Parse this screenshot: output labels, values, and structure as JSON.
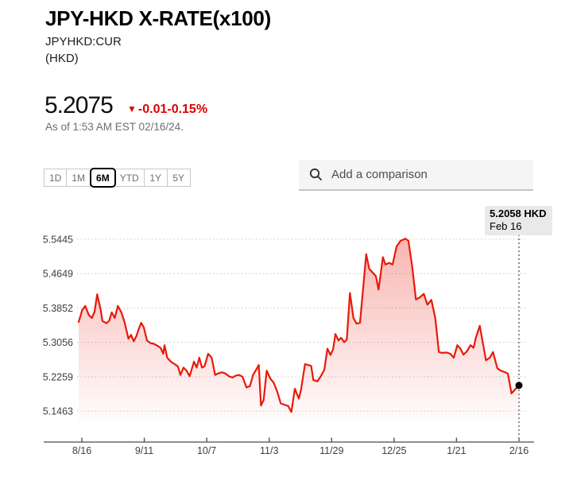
{
  "header": {
    "title": "JPY-HKD X-RATE(x100)",
    "ticker": "JPYHKD:CUR",
    "currency": "(HKD)",
    "price": "5.2075",
    "direction_icon": "▼",
    "change": "-0.01",
    "change_pct": "-0.15%",
    "as_of": "As of 1:53 AM EST 02/16/24."
  },
  "controls": {
    "ranges": [
      "1D",
      "1M",
      "6M",
      "YTD",
      "1Y",
      "5Y"
    ],
    "selected_range": "6M",
    "search_placeholder": "Add a comparison"
  },
  "colors": {
    "change_red": "#e00000",
    "line_red": "#e8190a",
    "fill_red": "#e8190a",
    "annotation_bg": "#e9e9e9"
  },
  "chart_data": {
    "type": "area",
    "title": "JPY-HKD X-RATE(x100)",
    "series_name": "JPYHKD:CUR",
    "unit": "HKD",
    "grid": "horizontal-dotted",
    "legend": "none",
    "line_color": "#e8190a",
    "y_ticks": [
      "5.5445",
      "5.4649",
      "5.3852",
      "5.3056",
      "5.2259",
      "5.1463"
    ],
    "x_ticks": [
      "8/16",
      "9/11",
      "10/7",
      "11/3",
      "11/29",
      "12/25",
      "1/21",
      "2/16"
    ],
    "ylim": [
      5.1463,
      5.5445
    ],
    "last_point": {
      "label": "5.2058 HKD",
      "date": "Feb 16",
      "value": 5.2058
    },
    "points": [
      [
        0.0,
        5.353
      ],
      [
        0.008,
        5.38
      ],
      [
        0.015,
        5.39
      ],
      [
        0.023,
        5.369
      ],
      [
        0.03,
        5.362
      ],
      [
        0.036,
        5.376
      ],
      [
        0.042,
        5.417
      ],
      [
        0.05,
        5.381
      ],
      [
        0.054,
        5.355
      ],
      [
        0.063,
        5.35
      ],
      [
        0.069,
        5.355
      ],
      [
        0.075,
        5.375
      ],
      [
        0.082,
        5.362
      ],
      [
        0.089,
        5.39
      ],
      [
        0.097,
        5.375
      ],
      [
        0.104,
        5.353
      ],
      [
        0.113,
        5.314
      ],
      [
        0.119,
        5.323
      ],
      [
        0.125,
        5.308
      ],
      [
        0.131,
        5.32
      ],
      [
        0.137,
        5.338
      ],
      [
        0.142,
        5.351
      ],
      [
        0.148,
        5.34
      ],
      [
        0.155,
        5.31
      ],
      [
        0.163,
        5.304
      ],
      [
        0.171,
        5.302
      ],
      [
        0.178,
        5.298
      ],
      [
        0.186,
        5.293
      ],
      [
        0.192,
        5.279
      ],
      [
        0.195,
        5.299
      ],
      [
        0.201,
        5.27
      ],
      [
        0.209,
        5.261
      ],
      [
        0.218,
        5.255
      ],
      [
        0.225,
        5.25
      ],
      [
        0.231,
        5.23
      ],
      [
        0.238,
        5.247
      ],
      [
        0.245,
        5.24
      ],
      [
        0.252,
        5.227
      ],
      [
        0.262,
        5.261
      ],
      [
        0.268,
        5.247
      ],
      [
        0.274,
        5.27
      ],
      [
        0.28,
        5.247
      ],
      [
        0.286,
        5.25
      ],
      [
        0.294,
        5.279
      ],
      [
        0.302,
        5.27
      ],
      [
        0.31,
        5.23
      ],
      [
        0.318,
        5.234
      ],
      [
        0.326,
        5.236
      ],
      [
        0.334,
        5.233
      ],
      [
        0.341,
        5.227
      ],
      [
        0.349,
        5.224
      ],
      [
        0.356,
        5.228
      ],
      [
        0.364,
        5.23
      ],
      [
        0.372,
        5.226
      ],
      [
        0.381,
        5.201
      ],
      [
        0.389,
        5.204
      ],
      [
        0.396,
        5.23
      ],
      [
        0.403,
        5.242
      ],
      [
        0.409,
        5.253
      ],
      [
        0.414,
        5.159
      ],
      [
        0.42,
        5.172
      ],
      [
        0.427,
        5.24
      ],
      [
        0.435,
        5.222
      ],
      [
        0.443,
        5.212
      ],
      [
        0.451,
        5.191
      ],
      [
        0.459,
        5.164
      ],
      [
        0.467,
        5.161
      ],
      [
        0.476,
        5.158
      ],
      [
        0.483,
        5.144
      ],
      [
        0.491,
        5.198
      ],
      [
        0.5,
        5.175
      ],
      [
        0.505,
        5.196
      ],
      [
        0.514,
        5.255
      ],
      [
        0.521,
        5.253
      ],
      [
        0.528,
        5.251
      ],
      [
        0.533,
        5.218
      ],
      [
        0.542,
        5.215
      ],
      [
        0.55,
        5.227
      ],
      [
        0.558,
        5.242
      ],
      [
        0.565,
        5.291
      ],
      [
        0.572,
        5.276
      ],
      [
        0.578,
        5.29
      ],
      [
        0.583,
        5.325
      ],
      [
        0.59,
        5.31
      ],
      [
        0.596,
        5.316
      ],
      [
        0.603,
        5.306
      ],
      [
        0.609,
        5.312
      ],
      [
        0.616,
        5.42
      ],
      [
        0.624,
        5.362
      ],
      [
        0.631,
        5.349
      ],
      [
        0.639,
        5.351
      ],
      [
        0.653,
        5.51
      ],
      [
        0.66,
        5.476
      ],
      [
        0.668,
        5.467
      ],
      [
        0.675,
        5.459
      ],
      [
        0.681,
        5.428
      ],
      [
        0.691,
        5.503
      ],
      [
        0.697,
        5.486
      ],
      [
        0.705,
        5.49
      ],
      [
        0.713,
        5.486
      ],
      [
        0.722,
        5.528
      ],
      [
        0.731,
        5.541
      ],
      [
        0.742,
        5.546
      ],
      [
        0.749,
        5.541
      ],
      [
        0.757,
        5.485
      ],
      [
        0.766,
        5.405
      ],
      [
        0.775,
        5.41
      ],
      [
        0.784,
        5.418
      ],
      [
        0.792,
        5.393
      ],
      [
        0.801,
        5.404
      ],
      [
        0.81,
        5.362
      ],
      [
        0.818,
        5.283
      ],
      [
        0.826,
        5.281
      ],
      [
        0.836,
        5.282
      ],
      [
        0.844,
        5.279
      ],
      [
        0.852,
        5.27
      ],
      [
        0.86,
        5.299
      ],
      [
        0.867,
        5.291
      ],
      [
        0.874,
        5.277
      ],
      [
        0.882,
        5.285
      ],
      [
        0.89,
        5.299
      ],
      [
        0.897,
        5.293
      ],
      [
        0.902,
        5.316
      ],
      [
        0.911,
        5.344
      ],
      [
        0.925,
        5.264
      ],
      [
        0.934,
        5.27
      ],
      [
        0.941,
        5.283
      ],
      [
        0.951,
        5.245
      ],
      [
        0.959,
        5.24
      ],
      [
        0.969,
        5.236
      ],
      [
        0.975,
        5.233
      ],
      [
        0.983,
        5.187
      ],
      [
        0.991,
        5.196
      ],
      [
        1.0,
        5.2058
      ]
    ]
  }
}
